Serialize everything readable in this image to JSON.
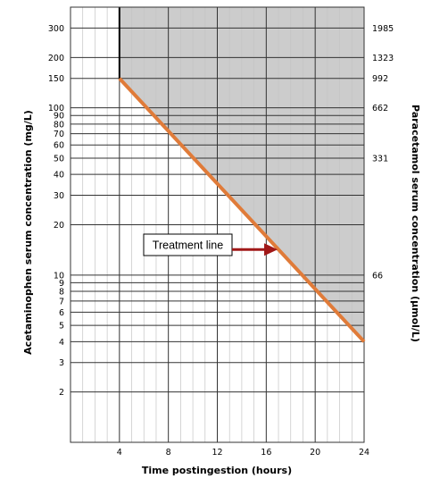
{
  "chart_data": {
    "type": "line",
    "xlabel": "Time postingestion (hours)",
    "ylabel_left": "Acetaminophen serum concentration (mg/L)",
    "ylabel_right": "Paracetamol serum concentration (µmol/L)",
    "x_scale": "linear",
    "y_scale": "log",
    "xlim": [
      0,
      24
    ],
    "ylim": [
      1,
      400
    ],
    "x_ticks": [
      4,
      8,
      12,
      16,
      20,
      24
    ],
    "y_ticks_left": [
      2,
      3,
      4,
      5,
      6,
      7,
      8,
      9,
      10,
      20,
      30,
      40,
      50,
      60,
      70,
      80,
      90,
      100,
      150,
      200,
      300
    ],
    "y_ticks_right": [
      {
        "value": 300,
        "label": "1985"
      },
      {
        "value": 200,
        "label": "1323"
      },
      {
        "value": 150,
        "label": "992"
      },
      {
        "value": 100,
        "label": "662"
      },
      {
        "value": 50,
        "label": "331"
      },
      {
        "value": 10,
        "label": "66"
      }
    ],
    "grid": true,
    "series": [
      {
        "name": "Treatment line",
        "color": "#e07b39",
        "x": [
          4,
          24
        ],
        "y": [
          150,
          4
        ]
      }
    ],
    "shaded_region": {
      "description": "area above the treatment line from 4 hours onward",
      "color": "#cccccc"
    },
    "annotations": [
      {
        "text": "Treatment line",
        "arrow_color": "#a01818",
        "points_to_x": 17
      }
    ]
  }
}
